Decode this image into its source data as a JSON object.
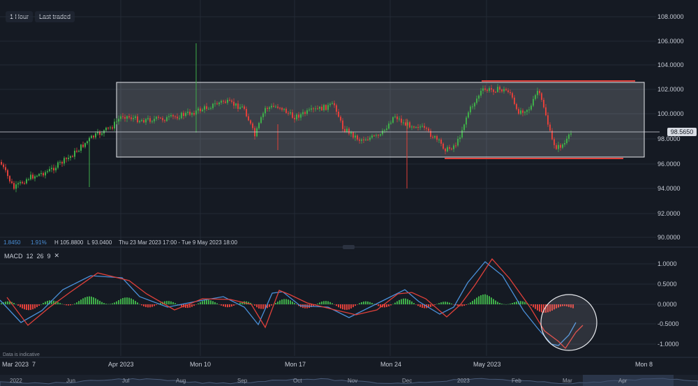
{
  "toolbar": {
    "interval_label": "1 Hour",
    "price_type_label": "Last traded"
  },
  "price_axis": {
    "ticks": [
      "108.0000",
      "106.0000",
      "104.0000",
      "102.0000",
      "100.0000",
      "98.0000",
      "96.0000",
      "94.0000",
      "92.0000",
      "90.0000"
    ],
    "last_price": "98.5650"
  },
  "stats": {
    "change": "1.8450",
    "change_pct": "1.91%",
    "high": "H 105.8800",
    "low": "L 93.0400",
    "range": "Thu 23 Mar 2023 17:00 - Tue 9 May 2023 18:00"
  },
  "macd": {
    "label": "MACD",
    "params": [
      "12",
      "26",
      "9"
    ],
    "close_symbol": "✕",
    "ticks": [
      "1.0000",
      "0.5000",
      "0.0000",
      "-0.5000",
      "-1.0000"
    ]
  },
  "notice": "Data is indicative",
  "time_axis": {
    "labels": [
      "Mar 2023",
      "7",
      "Apr 2023",
      "Mon 10",
      "Mon 17",
      "Mon 24",
      "May 2023",
      "Mon 8"
    ]
  },
  "navigator": {
    "labels": [
      "2022",
      "Jun",
      "Jul",
      "Aug",
      "Sep",
      "Oct",
      "Nov",
      "Dec",
      "2023",
      "Feb",
      "Mar",
      "Apr"
    ]
  },
  "colors": {
    "background": "#151a23",
    "up_candle": "#3fae49",
    "down_candle": "#e0403a",
    "range_box": "#e6e8ec",
    "support_resistance": "#e0403a",
    "macd_line": "#4a90d9",
    "signal_line": "#e0403a"
  }
}
